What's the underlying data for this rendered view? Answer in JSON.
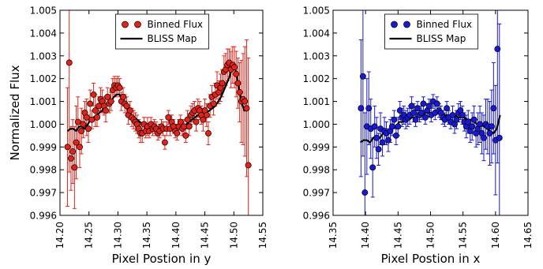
{
  "chart_data": [
    {
      "type": "scatter",
      "xlabel": "Pixel Postion in y",
      "ylabel": "Normalized Flux",
      "xlim": [
        14.2,
        14.55
      ],
      "ylim": [
        0.996,
        1.005
      ],
      "xticks": [
        "14.20",
        "14.25",
        "14.30",
        "14.35",
        "14.40",
        "14.45",
        "14.50",
        "14.55"
      ],
      "yticks": [
        "0.996",
        "0.997",
        "0.998",
        "0.999",
        "1.000",
        "1.001",
        "1.002",
        "1.003",
        "1.004",
        "1.005"
      ],
      "legend_position": "top-center",
      "marker_color": "#e32219",
      "series": [
        {
          "name": "Binned Flux",
          "kind": "errorbar-points",
          "x": [
            14.213,
            14.216,
            14.219,
            14.222,
            14.225,
            14.228,
            14.231,
            14.234,
            14.237,
            14.24,
            14.243,
            14.246,
            14.249,
            14.252,
            14.255,
            14.258,
            14.261,
            14.264,
            14.267,
            14.27,
            14.273,
            14.276,
            14.279,
            14.282,
            14.285,
            14.288,
            14.291,
            14.294,
            14.297,
            14.3,
            14.303,
            14.306,
            14.309,
            14.312,
            14.315,
            14.318,
            14.321,
            14.324,
            14.327,
            14.33,
            14.333,
            14.336,
            14.339,
            14.342,
            14.345,
            14.348,
            14.351,
            14.354,
            14.357,
            14.36,
            14.363,
            14.366,
            14.369,
            14.372,
            14.375,
            14.378,
            14.381,
            14.384,
            14.387,
            14.39,
            14.393,
            14.396,
            14.399,
            14.402,
            14.405,
            14.408,
            14.411,
            14.414,
            14.417,
            14.42,
            14.423,
            14.426,
            14.429,
            14.432,
            14.435,
            14.438,
            14.441,
            14.444,
            14.447,
            14.45,
            14.453,
            14.456,
            14.459,
            14.462,
            14.465,
            14.468,
            14.471,
            14.474,
            14.477,
            14.48,
            14.483,
            14.486,
            14.489,
            14.492,
            14.495,
            14.498,
            14.501,
            14.504,
            14.507,
            14.51,
            14.513,
            14.516,
            14.519,
            14.522,
            14.525
          ],
          "y": [
            0.999,
            1.0027,
            0.9985,
            0.9988,
            0.9981,
            0.9992,
            1.0001,
            0.999,
            0.9997,
            1.0,
            1.0005,
            1.0003,
            0.9998,
            1.0009,
            1.0002,
            1.0013,
            1.0006,
            1.0003,
            1.0008,
            1.0011,
            1.001,
            1.0008,
            1.0006,
            1.0012,
            1.0009,
            1.001,
            1.0015,
            1.0017,
            1.0016,
            1.0017,
            1.0016,
            1.001,
            1.0012,
            1.0009,
            1.0008,
            1.0004,
            1.0006,
            1.0003,
            1.0002,
            1.0001,
            1.0,
            0.9998,
            0.9996,
            0.9996,
            1.0,
            0.9997,
            0.9999,
            0.9997,
            1.0,
            0.9998,
            0.9999,
            0.9998,
            0.9996,
            0.9997,
            0.9999,
            0.9998,
            0.9992,
            0.9998,
            1.0003,
            0.9998,
            1.0001,
            0.9999,
            0.9997,
            0.9996,
            0.9999,
            1.0001,
            0.9998,
            0.9999,
            0.9995,
            1.0002,
            0.9999,
            1.0004,
            1.0005,
            1.0006,
            1.0001,
            1.0007,
            1.0006,
            1.0004,
            1.0002,
            1.0006,
            1.0004,
            0.9996,
            1.0008,
            1.0012,
            1.0009,
            1.0013,
            1.0017,
            1.0014,
            1.0016,
            1.0018,
            1.0023,
            1.0024,
            1.0026,
            1.0027,
            1.0024,
            1.0026,
            1.0025,
            1.0022,
            1.0018,
            1.0014,
            1.001,
            1.0011,
            1.001,
            1.0007,
            0.9982
          ],
          "err": [
            0.0026,
            0.0048,
            0.0014,
            0.0014,
            0.0018,
            0.0016,
            0.0011,
            0.0009,
            0.001,
            0.0006,
            0.0005,
            0.0008,
            0.0006,
            0.0006,
            0.0004,
            0.0005,
            0.0007,
            0.0004,
            0.0004,
            0.0005,
            0.0005,
            0.0004,
            0.0005,
            0.0004,
            0.0004,
            0.0004,
            0.0005,
            0.0004,
            0.0004,
            0.0004,
            0.0004,
            0.0004,
            0.0004,
            0.0004,
            0.0004,
            0.0004,
            0.0004,
            0.0004,
            0.0004,
            0.0004,
            0.0004,
            0.0004,
            0.0004,
            0.0004,
            0.0003,
            0.0003,
            0.0004,
            0.0003,
            0.0003,
            0.0003,
            0.0003,
            0.0003,
            0.0003,
            0.0003,
            0.0003,
            0.0003,
            0.0003,
            0.0003,
            0.0003,
            0.0003,
            0.0003,
            0.0003,
            0.0003,
            0.0003,
            0.0003,
            0.0003,
            0.0003,
            0.0003,
            0.0003,
            0.0004,
            0.0004,
            0.0004,
            0.0004,
            0.0004,
            0.0004,
            0.0004,
            0.0004,
            0.0004,
            0.0005,
            0.0005,
            0.0005,
            0.0005,
            0.0005,
            0.0005,
            0.0005,
            0.0005,
            0.0006,
            0.0005,
            0.0006,
            0.0006,
            0.0007,
            0.0007,
            0.0007,
            0.0006,
            0.0008,
            0.0008,
            0.0009,
            0.001,
            0.0011,
            0.0013,
            0.0018,
            0.002,
            0.0024,
            0.003,
            0.0047
          ]
        },
        {
          "name": "BLISS Map",
          "kind": "line",
          "x": [
            14.213,
            14.218,
            14.223,
            14.228,
            14.233,
            14.238,
            14.243,
            14.248,
            14.253,
            14.258,
            14.263,
            14.268,
            14.273,
            14.278,
            14.283,
            14.288,
            14.293,
            14.298,
            14.303,
            14.308,
            14.313,
            14.318,
            14.323,
            14.328,
            14.333,
            14.338,
            14.343,
            14.348,
            14.353,
            14.358,
            14.363,
            14.368,
            14.373,
            14.378,
            14.383,
            14.388,
            14.393,
            14.398,
            14.403,
            14.408,
            14.413,
            14.418,
            14.423,
            14.428,
            14.433,
            14.438,
            14.443,
            14.448,
            14.453,
            14.458,
            14.463,
            14.468,
            14.473,
            14.478,
            14.483,
            14.488,
            14.493,
            14.498,
            14.503,
            14.508,
            14.513,
            14.518,
            14.523,
            14.526
          ],
          "y": [
            0.9997,
            0.9998,
            0.9998,
            0.9997,
            0.9999,
            0.9999,
            0.9998,
            1.0,
            1.0002,
            1.0003,
            1.0004,
            1.0005,
            1.0006,
            1.0008,
            1.0009,
            1.001,
            1.0012,
            1.0013,
            1.0013,
            1.001,
            1.0008,
            1.0006,
            1.0004,
            1.0003,
            1.0002,
            1.0001,
            1.0,
            0.9999,
            0.9999,
            0.9998,
            0.9998,
            0.9998,
            0.9998,
            0.9997,
            0.9998,
            0.9998,
            0.9999,
            0.9998,
            0.9999,
            0.9999,
            0.9999,
            1.0,
            1.0001,
            1.0002,
            1.0003,
            1.0004,
            1.0004,
            1.0005,
            1.0005,
            1.0006,
            1.0007,
            1.0008,
            1.001,
            1.0012,
            1.0015,
            1.0018,
            1.0021,
            1.0026,
            1.0024,
            1.0017,
            1.001,
            1.0006,
            1.0006,
            1.0007
          ]
        }
      ]
    },
    {
      "type": "scatter",
      "xlabel": "Pixel Postion in x",
      "ylabel": "",
      "xlim": [
        14.35,
        14.65
      ],
      "ylim": [
        0.996,
        1.005
      ],
      "xticks": [
        "14.35",
        "14.40",
        "14.45",
        "14.50",
        "14.55",
        "14.60",
        "14.65"
      ],
      "yticks": [
        "0.996",
        "0.997",
        "0.998",
        "0.999",
        "1.000",
        "1.001",
        "1.002",
        "1.003",
        "1.004",
        "1.005"
      ],
      "legend_position": "top-center",
      "marker_color": "#1818d6",
      "series": [
        {
          "name": "Binned Flux",
          "kind": "errorbar-points",
          "x": [
            14.393,
            14.396,
            14.399,
            14.402,
            14.405,
            14.408,
            14.411,
            14.414,
            14.417,
            14.42,
            14.423,
            14.426,
            14.429,
            14.432,
            14.435,
            14.438,
            14.441,
            14.444,
            14.447,
            14.45,
            14.453,
            14.456,
            14.459,
            14.462,
            14.465,
            14.468,
            14.471,
            14.474,
            14.477,
            14.48,
            14.483,
            14.486,
            14.489,
            14.492,
            14.495,
            14.498,
            14.501,
            14.504,
            14.507,
            14.51,
            14.513,
            14.516,
            14.519,
            14.522,
            14.525,
            14.528,
            14.531,
            14.534,
            14.537,
            14.54,
            14.543,
            14.546,
            14.549,
            14.552,
            14.555,
            14.558,
            14.561,
            14.564,
            14.567,
            14.57,
            14.573,
            14.576,
            14.579,
            14.582,
            14.585,
            14.588,
            14.591,
            14.594,
            14.597,
            14.6,
            14.603,
            14.606
          ],
          "y": [
            1.0007,
            1.0021,
            0.997,
            0.9999,
            1.0007,
            0.9998,
            0.9981,
            0.9999,
            0.9994,
            0.9989,
            0.9998,
            0.9992,
            0.9997,
            0.9996,
            0.9993,
            0.9997,
            0.9999,
            1.0002,
            0.9995,
            0.9999,
            1.0006,
            1.0003,
            1.0004,
            1.0002,
            1.0003,
            1.0004,
            1.0008,
            1.0005,
            1.0002,
            1.0007,
            1.0004,
            1.0005,
            1.0009,
            1.0003,
            1.0006,
            1.0008,
            1.0004,
            1.001,
            1.0005,
            1.0009,
            1.0006,
            1.0005,
            1.0003,
            1.0002,
            1.0007,
            1.0003,
            1.0001,
            1.0004,
            1.0,
            1.0002,
            1.0005,
            1.0006,
            1.0004,
            1.0001,
            0.9999,
            1.0001,
            0.9997,
            0.9999,
            1.0002,
            0.9996,
            0.9998,
            1.0,
            0.9996,
            0.9994,
            1.0,
            0.9999,
            0.9996,
            0.9999,
            1.0007,
            0.9993,
            1.0033,
            0.9994
          ],
          "err": [
            0.003,
            0.0035,
            0.0035,
            0.0021,
            0.0016,
            0.0013,
            0.0013,
            0.0009,
            0.0009,
            0.0007,
            0.0007,
            0.0006,
            0.0006,
            0.0005,
            0.0005,
            0.0005,
            0.0004,
            0.0004,
            0.0004,
            0.0004,
            0.0004,
            0.0004,
            0.0004,
            0.0004,
            0.0004,
            0.0004,
            0.0004,
            0.0004,
            0.0003,
            0.0003,
            0.0003,
            0.0003,
            0.0003,
            0.0003,
            0.0003,
            0.0003,
            0.0003,
            0.0003,
            0.0003,
            0.0003,
            0.0003,
            0.0003,
            0.0003,
            0.0003,
            0.0003,
            0.0003,
            0.0003,
            0.0004,
            0.0004,
            0.0004,
            0.0004,
            0.0004,
            0.0004,
            0.0004,
            0.0005,
            0.0005,
            0.0005,
            0.0006,
            0.0006,
            0.0006,
            0.0007,
            0.0008,
            0.0009,
            0.001,
            0.0011,
            0.0012,
            0.0014,
            0.0016,
            0.002,
            0.0024,
            0.005,
            0.005
          ]
        },
        {
          "name": "BLISS Map",
          "kind": "line",
          "x": [
            14.392,
            14.397,
            14.402,
            14.407,
            14.412,
            14.417,
            14.422,
            14.427,
            14.432,
            14.437,
            14.442,
            14.447,
            14.452,
            14.457,
            14.462,
            14.467,
            14.472,
            14.477,
            14.482,
            14.487,
            14.492,
            14.497,
            14.502,
            14.507,
            14.512,
            14.517,
            14.522,
            14.527,
            14.532,
            14.537,
            14.542,
            14.547,
            14.552,
            14.557,
            14.562,
            14.567,
            14.572,
            14.577,
            14.582,
            14.587,
            14.592,
            14.597,
            14.602,
            14.607
          ],
          "y": [
            0.9992,
            0.9993,
            0.9993,
            0.9992,
            0.9994,
            0.9995,
            0.9994,
            0.9996,
            0.9996,
            0.9997,
            0.9998,
            0.9999,
            1.0001,
            1.0001,
            1.0002,
            1.0002,
            1.0003,
            1.0003,
            1.0004,
            1.0004,
            1.0005,
            1.0005,
            1.0005,
            1.0004,
            1.0005,
            1.0005,
            1.0004,
            1.0004,
            1.0003,
            1.0004,
            1.0003,
            1.0003,
            1.0003,
            1.0002,
            1.0002,
            1.0001,
            1.0,
            1.0,
            0.9999,
            0.9998,
            0.9997,
            0.9996,
            0.9998,
            1.0004
          ]
        }
      ]
    }
  ]
}
